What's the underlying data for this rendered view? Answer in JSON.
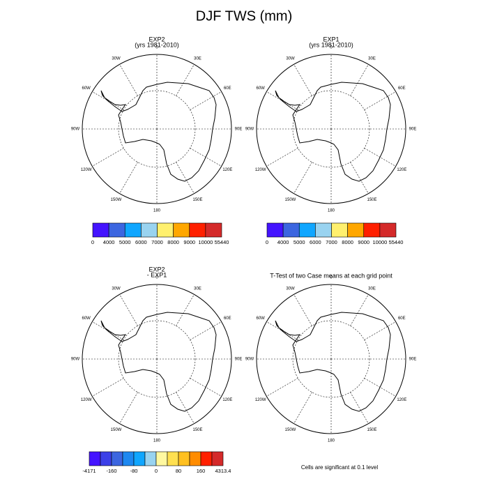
{
  "title": "DJF TWS (mm)",
  "panels": [
    {
      "title": [
        "EXP2",
        "(yrs 1981-2010)"
      ]
    },
    {
      "title": [
        "EXP1",
        "(yrs 1981-2010)"
      ]
    },
    {
      "title": [
        "EXP2",
        "- EXP1"
      ]
    },
    {
      "title": [
        "T-Test of two Case means at each grid point"
      ]
    }
  ],
  "map_labels": [
    "0",
    "30E",
    "60E",
    "90E",
    "120E",
    "150E",
    "180",
    "150W",
    "120W",
    "90W",
    "60W",
    "30W"
  ],
  "colorbars": [
    {
      "colors": [
        "#4414ff",
        "#3c66e0",
        "#10a6ff",
        "#99d3f0",
        "#fff06e",
        "#ffa700",
        "#ff2000",
        "#d42a2a"
      ],
      "labels": [
        "0",
        "4000",
        "5000",
        "6000",
        "7000",
        "8000",
        "9000",
        "10000",
        "55440"
      ]
    },
    {
      "colors": [
        "#4414ff",
        "#3c66e0",
        "#10a6ff",
        "#99d3f0",
        "#fff06e",
        "#ffa700",
        "#ff2000",
        "#d42a2a"
      ],
      "labels": [
        "0",
        "4000",
        "5000",
        "6000",
        "7000",
        "8000",
        "9000",
        "10000",
        "55440"
      ]
    },
    {
      "colors": [
        "#4414ff",
        "#3c40e8",
        "#3c66e0",
        "#1e88f0",
        "#10a6ff",
        "#99d3f0",
        "#fff8a0",
        "#ffe050",
        "#ffc020",
        "#ff8c00",
        "#ff2000",
        "#d42a2a"
      ],
      "labels": [
        "-4171",
        "-160",
        "-80",
        "0",
        "80",
        "160",
        "4313.4"
      ]
    }
  ],
  "footnote": "Cells are significant at 0.1 level"
}
